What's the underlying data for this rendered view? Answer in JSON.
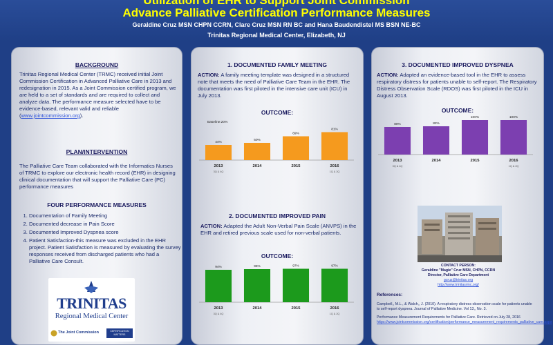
{
  "header": {
    "title_line1": "Utilization of EHR to Support Joint Commission",
    "title_line2": "Advance Palliative Certification Performance Measures",
    "authors": "Geraldine Cruz  MSN  CHPN  CCRN, Clare Cruz MSN  RN BC and Hana Baudendistel MS BSN NE-BC",
    "institution": "Trinitas Regional Medical Center, Elizabeth, NJ"
  },
  "left": {
    "background_title": "BACKGROUND",
    "background_text": "Trinitas Regional Medical Center (TRMC) received initial Joint Commission Certification in Advanced Palliative Care in 2013 and redesignation in 2015. As a Joint Commission certified program, we are held to a set of standards and are required to collect and analyze data. The performance measure selected have to be evidence-based, relevant  valid and reliable (",
    "background_link": "www.jointcommission.org",
    "background_end": ").",
    "plan_title": "PLAN/INTERVENTION",
    "plan_text": "The Palliative Care Team collaborated with the Informatics Nurses of TRMC to explore our electronic health record (EHR) in designing clinical documentation that will support the Palliative Care (PC) performance measures",
    "measures_title": "FOUR PERFORMANCE MEASURES",
    "measures": [
      "Documentation of Family Meeting",
      "Documented decrease in Pain Score",
      "Documented Improved Dyspnea score",
      "Patient Satisfaction-this measure was excluded in the EHR project. Patient Satisfaction is measured by evaluating the survey responses received from discharged patients who had a Palliative Care Consult."
    ],
    "logo": {
      "name": "TRINITAS",
      "sub": "Regional Medical Center",
      "jc": "The Joint Commission",
      "cert_line1": "CERTIFICATION",
      "cert_line2": "MATTERS"
    }
  },
  "middle": {
    "family_title": "1. DOCUMENTED FAMILY MEETING",
    "family_action_label": "ACTION:",
    "family_action_text": " A family meeting template was designed in a structured note that meets the need of Palliative Care Team in the EHR. The documentation was first piloted in the intensive care unit (ICU) in July 2013.",
    "family_outcome": "OUTCOME:",
    "pain_title": "2. DOCUMENTED IMPROVED PAIN",
    "pain_action_label": "ACTION:",
    "pain_action_text": " Adapted the Adult Non-Verbal Pain Scale (ANVPS) in the EHR and retired previous scale used for non-verbal patients.",
    "pain_outcome": "OUTCOME:"
  },
  "right": {
    "dyspnea_title": "3. DOCUMENTED IMPROVED DYSPNEA",
    "dyspnea_action_label": "ACTION:",
    "dyspnea_action_text": " Adapted an evidence-based tool in the EHR to assess respiratory distress for patients unable to self-report. The Respiratory Distress Observation Scale (RDOS) was first piloted in the ICU in August 2013.",
    "dyspnea_outcome": "OUTCOME:",
    "contact_label": "CONTACT PERSON:",
    "contact_name": "Geraldine \"Magie\" Cruz MSN, CHPN, CCRN",
    "contact_role": "Director, Palliative Care Department",
    "contact_email": "gcruz@trinitas.org",
    "contact_web": "http://www.trinitasrmc.org/",
    "refs_title": "References:",
    "ref1": "Campbell,, M.L., & Walch,,  J. (2010). A respiratory distress observation scale for patients unable to self-report dyspnea. Journal of Palliative Medicine. Vol 13,, No. 3.",
    "ref2_text": "Performance Measurement Requirements for Palliative Care.  Retrieved on July 28, 2016 ",
    "ref2_link": "https://www.jointcommission.org/certification/performance_measurement_requirements_palliative_care.aspx"
  },
  "chart_data": [
    {
      "type": "bar",
      "categories": [
        "2013",
        "2014",
        "2015",
        "2016"
      ],
      "sublabels": [
        "3Q & 4Q",
        "",
        "",
        "1Q & 2Q"
      ],
      "values": [
        44,
        50,
        69,
        81
      ],
      "data_labels": [
        "44%",
        "50%",
        "69%",
        "81%"
      ],
      "annotation": "Baseline:20%",
      "ylim": [
        0,
        100
      ],
      "color": "#f59a1e"
    },
    {
      "type": "bar",
      "categories": [
        "2013",
        "2014",
        "2015",
        "2016"
      ],
      "sublabels": [
        "3Q & 4Q",
        "",
        "",
        "1Q & 2Q"
      ],
      "values": [
        94,
        96,
        97,
        97
      ],
      "data_labels": [
        "94%",
        "96%",
        "97%",
        "97%"
      ],
      "ylim": [
        0,
        100
      ],
      "color": "#1c9a1c"
    },
    {
      "type": "bar",
      "categories": [
        "2013",
        "2014",
        "2015",
        "2016"
      ],
      "sublabels": [
        "3Q & 4Q",
        "",
        "",
        "1Q & 2Q"
      ],
      "values": [
        80,
        82,
        100,
        100
      ],
      "data_labels": [
        "80%",
        "82%",
        "100%",
        "100%"
      ],
      "ylim": [
        0,
        100
      ],
      "color": "#7c3fb0"
    }
  ]
}
